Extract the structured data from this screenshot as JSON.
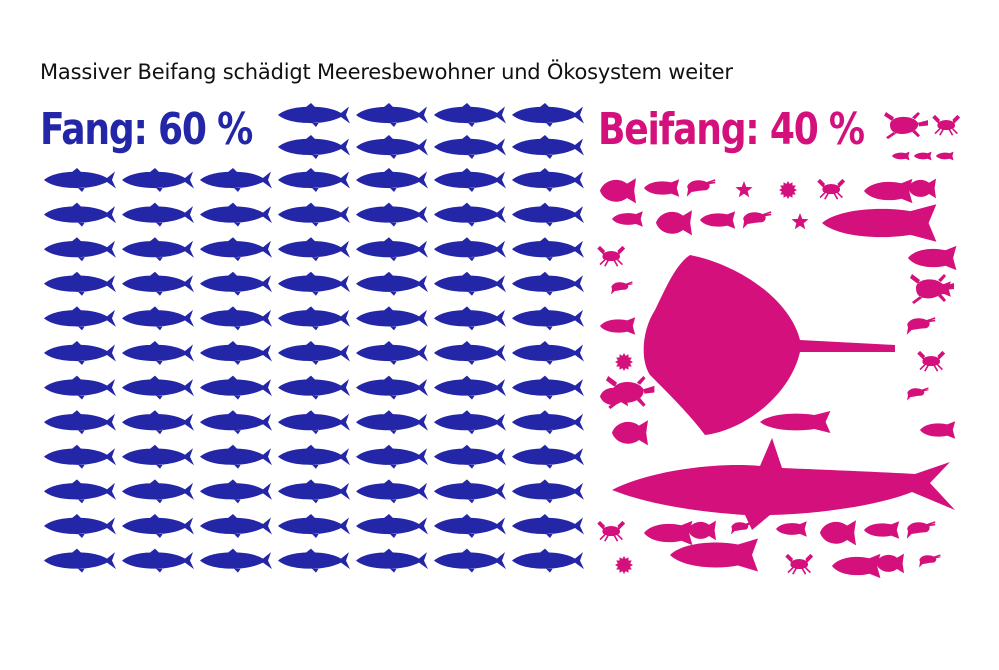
{
  "headline": "Massiver Beifang schädigt Meeresbewohner und Ökosystem weiter",
  "catch": {
    "label": "Fang: 60 %",
    "share_percent": 60
  },
  "bycatch": {
    "label": "Beifang: 40 %",
    "share_percent": 40
  },
  "colors": {
    "catch": "#2326a6",
    "bycatch": "#d4107c",
    "text": "#111111"
  },
  "icons": {
    "catch": "mackerel-icon",
    "bycatch_large": [
      "stingray-icon",
      "shark-icon",
      "turtle-icon",
      "amberjack-icon",
      "fish-icon"
    ],
    "bycatch_small": [
      "crab-icon",
      "shrimp-icon",
      "starfish-icon",
      "sea-urchin-icon",
      "reef-fish-icon",
      "turtle-icon"
    ]
  }
}
